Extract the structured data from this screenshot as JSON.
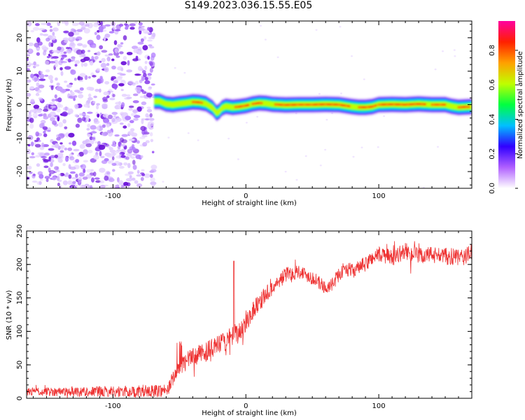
{
  "title": "S149.2023.036.15.55.E05",
  "chart_data": [
    {
      "type": "heatmap",
      "panel": "spectrogram",
      "xlabel": "Height of straight line (km)",
      "ylabel": "Frequency (Hz)",
      "xlim": [
        -165,
        170
      ],
      "ylim": [
        -25,
        25
      ],
      "xticks": [
        -100,
        0,
        100
      ],
      "yticks": [
        -20,
        -10,
        0,
        10,
        20
      ],
      "noise_region_x": [
        -165,
        -69
      ],
      "signal_onset_x": -69,
      "signal_trace": {
        "x": [
          -69,
          -65,
          -60,
          -55,
          -50,
          -45,
          -40,
          -35,
          -30,
          -25,
          -22,
          -20,
          -18,
          -15,
          -10,
          -5,
          0,
          5,
          10,
          15,
          20,
          25,
          30,
          40,
          50,
          60,
          70,
          80,
          85,
          90,
          95,
          100,
          110,
          120,
          130,
          140,
          150,
          155,
          160,
          165,
          170
        ],
        "y": [
          1.0,
          1.0,
          0.2,
          0.0,
          0.3,
          0.5,
          0.8,
          0.7,
          0.3,
          -1.0,
          -2.5,
          -2.0,
          -1.0,
          -0.5,
          -0.8,
          -0.6,
          -0.3,
          0.2,
          0.5,
          0.4,
          0.1,
          0.0,
          -0.1,
          0.0,
          0.0,
          0.1,
          0.0,
          -0.6,
          -0.8,
          -0.8,
          -0.6,
          0.0,
          0.1,
          0.0,
          0.2,
          0.0,
          0.0,
          -0.5,
          -0.8,
          -0.7,
          -0.6
        ]
      },
      "colorbar": {
        "label": "Normalized spectral amplitude",
        "ticks": [
          0.0,
          0.2,
          0.4,
          0.6,
          0.8
        ],
        "range": [
          0,
          0.97
        ],
        "colors": [
          "#ffffff",
          "#b060ff",
          "#3000ff",
          "#00c0ff",
          "#00ff40",
          "#c0ff00",
          "#ffa000",
          "#ff2000",
          "#ff00a0"
        ]
      }
    },
    {
      "type": "line",
      "panel": "snr",
      "xlabel": "Height of straight line (km)",
      "ylabel": "SNR (10 * v/v)",
      "xlim": [
        -165,
        170
      ],
      "ylim": [
        0,
        250
      ],
      "xticks": [
        -100,
        0,
        100
      ],
      "yticks": [
        0,
        50,
        100,
        150,
        200,
        250
      ],
      "color": "#ee3333",
      "spike": {
        "x": -9,
        "y": 205
      },
      "envelope": {
        "x": [
          -165,
          -120,
          -80,
          -62,
          -58,
          -55,
          -50,
          -45,
          -40,
          -30,
          -20,
          -10,
          -5,
          0,
          5,
          10,
          15,
          20,
          25,
          30,
          40,
          50,
          60,
          65,
          70,
          75,
          80,
          90,
          95,
          100,
          110,
          120,
          130,
          140,
          150,
          160,
          170
        ],
        "y": [
          10,
          10,
          10,
          12,
          15,
          30,
          45,
          55,
          62,
          70,
          80,
          92,
          98,
          115,
          130,
          145,
          155,
          165,
          175,
          185,
          190,
          180,
          165,
          170,
          185,
          195,
          190,
          200,
          210,
          215,
          210,
          220,
          212,
          215,
          212,
          210,
          215
        ]
      },
      "noise_amplitude": {
        "x": [
          -165,
          -60,
          -40,
          0,
          20,
          60,
          100,
          170
        ],
        "amp": [
          6,
          10,
          14,
          16,
          12,
          10,
          12,
          14
        ]
      }
    }
  ]
}
